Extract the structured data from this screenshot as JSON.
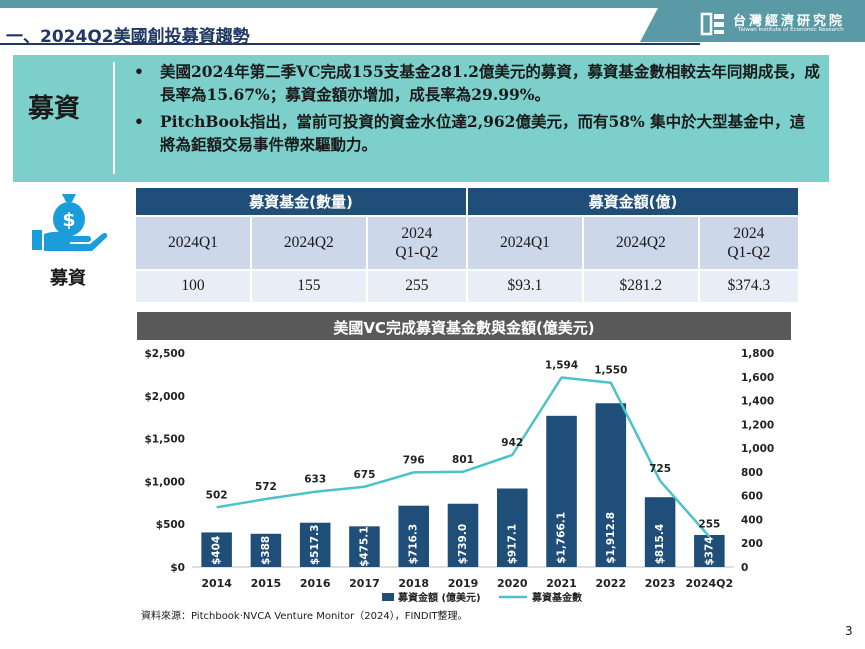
{
  "header": {
    "title": "一、2024Q2美國創投募資趨勢",
    "logo_cn": "台灣經濟研究院",
    "logo_en": "Taiwan Institute of Economic Research"
  },
  "summary": {
    "label": "募資",
    "bullet_glyph": "•",
    "bullets": [
      "美國2024年第二季VC完成155支基金281.2億美元的募資，募資基金數相較去年同期成長，成長率為15.67%；募資金額亦增加，成長率為29.99%。",
      "PitchBook指出，當前可投資的資金水位達2,962億美元，而有58% 集中於大型基金中，這將為鉅額交易事件帶來驅動力。"
    ]
  },
  "icon_label": "募資",
  "stats_table": {
    "group_headers": [
      "募資基金(數量)",
      "募資金額(億)"
    ],
    "period_labels": [
      [
        "2024Q1"
      ],
      [
        "2024Q2"
      ],
      [
        "2024",
        "Q1-Q2"
      ],
      [
        "2024Q1"
      ],
      [
        "2024Q2"
      ],
      [
        "2024",
        "Q1-Q2"
      ]
    ],
    "values": [
      "100",
      "155",
      "255",
      "$93.1",
      "$281.2",
      "$374.3"
    ]
  },
  "chart_data": {
    "type": "bar",
    "title": "美國VC完成募資基金數與金額(億美元)",
    "categories": [
      "2014",
      "2015",
      "2016",
      "2017",
      "2018",
      "2019",
      "2020",
      "2021",
      "2022",
      "2023",
      "2024Q2"
    ],
    "series": [
      {
        "name": "募資金額 (億美元)",
        "type": "bar",
        "axis": "left",
        "values": [
          404,
          388,
          517.3,
          475.1,
          716.3,
          739.0,
          917.1,
          1766.1,
          1912.8,
          815.4,
          374
        ],
        "labels": [
          "$404",
          "$388",
          "$517.3",
          "$475.1",
          "$716.3",
          "$739.0",
          "$917.1",
          "$1,766.1",
          "$1,912.8",
          "$815.4",
          "$374"
        ]
      },
      {
        "name": "募資基金數",
        "type": "line",
        "axis": "right",
        "values": [
          502,
          572,
          633,
          675,
          796,
          801,
          942,
          1594,
          1550,
          725,
          255
        ],
        "labels": [
          "502",
          "572",
          "633",
          "675",
          "796",
          "801",
          "942",
          "1,594",
          "1,550",
          "725",
          "255"
        ]
      }
    ],
    "left_axis": {
      "ylim": [
        0,
        2500
      ],
      "ticks": [
        0,
        500,
        1000,
        1500,
        2000,
        2500
      ],
      "tick_labels": [
        "$0",
        "$500",
        "$1,000",
        "$1,500",
        "$2,000",
        "$2,500"
      ]
    },
    "right_axis": {
      "ylim": [
        0,
        1800
      ],
      "ticks": [
        0,
        200,
        400,
        600,
        800,
        1000,
        1200,
        1400,
        1600,
        1800
      ],
      "tick_labels": [
        "0",
        "200",
        "400",
        "600",
        "800",
        "1,000",
        "1,200",
        "1,400",
        "1,600",
        "1,800"
      ]
    },
    "grid": false,
    "legend_position": "bottom",
    "colors": {
      "bar": "#1f4e79",
      "line": "#4bc3c9"
    }
  },
  "source": "資料來源：Pitchbook‧NVCA Venture Monitor（2024），FINDIT整理。",
  "page_number": "3"
}
